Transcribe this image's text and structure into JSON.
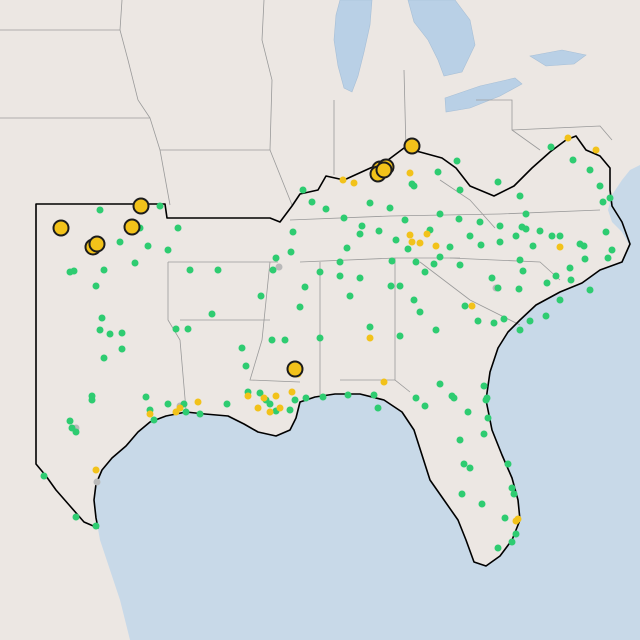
{
  "map": {
    "colors": {
      "land": "#ece7e3",
      "water": "#c8d9e8",
      "lakes": "#b9d0e6",
      "state_lines": "#9a9a9a",
      "region_outline": "#000000",
      "green_marker": "#2ecc71",
      "yellow_marker": "#f2c21a",
      "gray_marker": "#b9b9b9",
      "large_marker_border": "#1c1c1c"
    },
    "marker_summary": {
      "green_small_count": 206,
      "yellow_small_count": 27,
      "gray_small_count": 5,
      "yellow_large_count": 11
    }
  }
}
